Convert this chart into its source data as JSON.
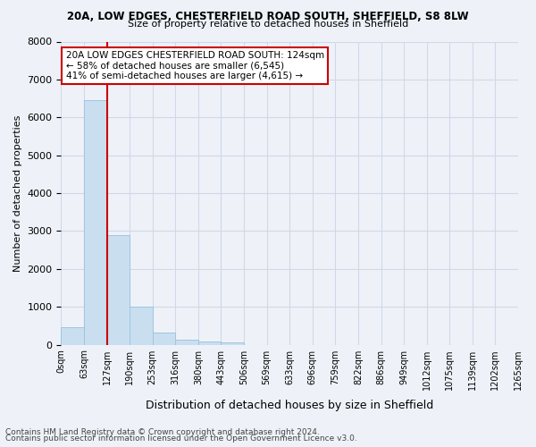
{
  "title1": "20A, LOW EDGES, CHESTERFIELD ROAD SOUTH, SHEFFIELD, S8 8LW",
  "title2": "Size of property relative to detached houses in Sheffield",
  "xlabel": "Distribution of detached houses by size in Sheffield",
  "ylabel": "Number of detached properties",
  "footer1": "Contains HM Land Registry data © Crown copyright and database right 2024.",
  "footer2": "Contains public sector information licensed under the Open Government Licence v3.0.",
  "annotation_lines": [
    "20A LOW EDGES CHESTERFIELD ROAD SOUTH: 124sqm",
    "← 58% of detached houses are smaller (6,545)",
    "41% of semi-detached houses are larger (4,615) →"
  ],
  "bin_labels": [
    "0sqm",
    "63sqm",
    "127sqm",
    "190sqm",
    "253sqm",
    "316sqm",
    "380sqm",
    "443sqm",
    "506sqm",
    "569sqm",
    "633sqm",
    "696sqm",
    "759sqm",
    "822sqm",
    "886sqm",
    "949sqm",
    "1012sqm",
    "1075sqm",
    "1139sqm",
    "1202sqm",
    "1265sqm"
  ],
  "bar_values": [
    450,
    6450,
    2900,
    1000,
    330,
    130,
    80,
    50,
    0,
    0,
    0,
    0,
    0,
    0,
    0,
    0,
    0,
    0,
    0,
    0
  ],
  "bar_color": "#c9dff0",
  "bar_edge_color": "#a0c4e0",
  "vline_x": 2.0,
  "vline_color": "#cc0000",
  "ylim": [
    0,
    8000
  ],
  "yticks": [
    0,
    1000,
    2000,
    3000,
    4000,
    5000,
    6000,
    7000,
    8000
  ],
  "annotation_box_color": "#cc0000",
  "grid_color": "#d0d8e8",
  "background_color": "#eef2f8"
}
